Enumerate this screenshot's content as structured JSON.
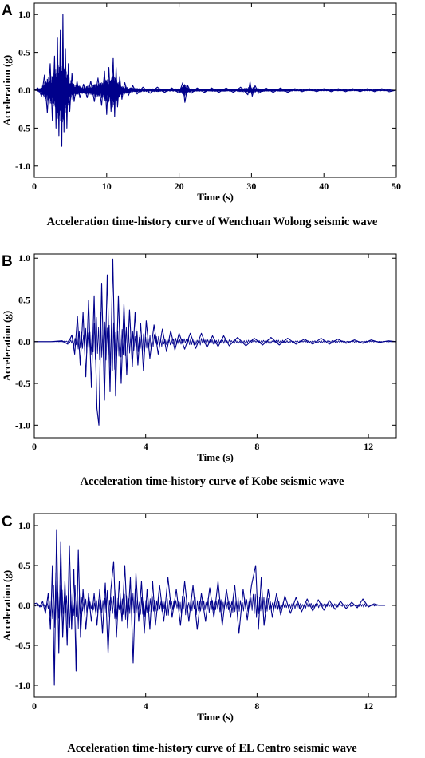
{
  "figure": {
    "series_color": "#00008B"
  },
  "chart_data": [
    {
      "type": "line",
      "panel_label": "A",
      "caption": "Acceleration time-history curve of Wenchuan Wolong seismic wave",
      "xlabel": "Time (s)",
      "ylabel": "Acceleration (g)",
      "xlim": [
        0,
        50
      ],
      "ylim": [
        -1.15,
        1.15
      ],
      "xticks": [
        0,
        10,
        20,
        30,
        40,
        50
      ],
      "yticks": [
        -1.0,
        -0.5,
        0.0,
        0.5,
        1.0
      ],
      "xtick_labels": [
        "0",
        "10",
        "20",
        "30",
        "40",
        "50"
      ],
      "ytick_labels": [
        "-1.0",
        "-0.5",
        "0.0",
        "0.5",
        "1.0"
      ],
      "grid": false,
      "series": [
        {
          "x": [
            0,
            0.5,
            1.0,
            1.4,
            1.8,
            2.2,
            2.5,
            2.8,
            3.0,
            3.2,
            3.4,
            3.6,
            3.8,
            3.95,
            4.1,
            4.3,
            4.5,
            4.7,
            4.9,
            5.2,
            5.5,
            5.9,
            6.3,
            6.8,
            7.3,
            7.8,
            8.3,
            8.8,
            9.3,
            9.7,
            10.0,
            10.3,
            10.6,
            10.9,
            11.1,
            11.3,
            11.5,
            11.8,
            12.1,
            12.5,
            13.0,
            13.6,
            14.2,
            15.0,
            16.0,
            17.0,
            18.0,
            19.0,
            20.0,
            20.5,
            20.8,
            21.2,
            21.7,
            22.5,
            23.5,
            24.5,
            25.5,
            26.5,
            27.5,
            28.5,
            29.5,
            29.8,
            30.1,
            30.5,
            31.0,
            32.0,
            33.0,
            34.0,
            35.0,
            36.0,
            37.0,
            38.0,
            39.0,
            40.0,
            41.0,
            42.0,
            43.0,
            44.0,
            45.0,
            46.0,
            47.0,
            48.0,
            49.0,
            50.0
          ],
          "y": [
            0.0,
            0.03,
            -0.08,
            0.2,
            -0.3,
            0.35,
            -0.4,
            0.45,
            -0.5,
            0.7,
            -0.6,
            0.8,
            -0.74,
            1.0,
            -0.55,
            0.55,
            -0.5,
            0.35,
            -0.28,
            0.22,
            -0.15,
            0.12,
            -0.1,
            0.08,
            -0.1,
            0.12,
            -0.15,
            0.16,
            -0.2,
            0.25,
            -0.32,
            0.3,
            -0.28,
            0.43,
            -0.35,
            0.3,
            -0.22,
            0.18,
            -0.12,
            0.1,
            -0.07,
            0.06,
            -0.05,
            0.04,
            -0.04,
            0.04,
            -0.03,
            0.03,
            -0.04,
            0.1,
            -0.16,
            0.06,
            -0.04,
            0.03,
            -0.03,
            0.03,
            -0.03,
            0.03,
            -0.03,
            0.04,
            -0.06,
            0.11,
            -0.08,
            0.06,
            -0.04,
            0.03,
            -0.03,
            0.03,
            -0.03,
            0.02,
            -0.02,
            0.02,
            -0.02,
            0.02,
            -0.02,
            0.02,
            -0.02,
            0.02,
            -0.02,
            0.02,
            -0.02,
            0.02,
            -0.02,
            0.0
          ]
        }
      ]
    },
    {
      "type": "line",
      "panel_label": "B",
      "caption": "Acceleration time-history curve of Kobe seismic wave",
      "xlabel": "Time (s)",
      "ylabel": "Acceleration (g)",
      "xlim": [
        0,
        13
      ],
      "ylim": [
        -1.15,
        1.05
      ],
      "xticks": [
        0,
        4,
        8,
        12
      ],
      "yticks": [
        -1.0,
        -0.5,
        0.0,
        0.5,
        1.0
      ],
      "xtick_labels": [
        "0",
        "4",
        "8",
        "12"
      ],
      "ytick_labels": [
        "-1.0",
        "-0.5",
        "0.0",
        "0.5",
        "1.0"
      ],
      "grid": false,
      "series": [
        {
          "x": [
            0,
            0.6,
            1.0,
            1.2,
            1.35,
            1.45,
            1.55,
            1.65,
            1.75,
            1.85,
            1.95,
            2.05,
            2.15,
            2.25,
            2.32,
            2.42,
            2.52,
            2.62,
            2.72,
            2.82,
            2.92,
            3.02,
            3.12,
            3.22,
            3.32,
            3.42,
            3.52,
            3.62,
            3.72,
            3.82,
            3.92,
            4.02,
            4.15,
            4.3,
            4.45,
            4.6,
            4.75,
            4.9,
            5.05,
            5.2,
            5.4,
            5.6,
            5.8,
            6.0,
            6.2,
            6.4,
            6.6,
            6.8,
            7.0,
            7.3,
            7.6,
            7.9,
            8.2,
            8.5,
            8.8,
            9.1,
            9.4,
            9.7,
            10.0,
            10.3,
            10.6,
            10.9,
            11.2,
            11.5,
            11.8,
            12.1,
            12.4,
            12.7,
            13.0
          ],
          "y": [
            0.0,
            0.0,
            0.01,
            -0.03,
            0.08,
            -0.15,
            0.3,
            -0.28,
            0.35,
            -0.42,
            0.5,
            -0.55,
            0.55,
            -0.8,
            -1.0,
            0.7,
            -0.7,
            0.8,
            -0.6,
            0.99,
            -0.65,
            0.55,
            -0.5,
            0.45,
            -0.4,
            0.38,
            -0.3,
            0.35,
            -0.28,
            0.22,
            -0.35,
            0.25,
            -0.2,
            0.2,
            -0.15,
            0.15,
            -0.12,
            0.13,
            -0.1,
            0.1,
            -0.09,
            0.1,
            -0.08,
            0.1,
            -0.07,
            0.07,
            -0.06,
            0.07,
            -0.05,
            0.05,
            -0.05,
            0.04,
            -0.04,
            0.05,
            -0.04,
            0.04,
            -0.03,
            0.03,
            -0.03,
            0.04,
            -0.03,
            0.03,
            -0.02,
            0.02,
            -0.02,
            0.02,
            -0.01,
            0.01,
            0.0
          ]
        }
      ]
    },
    {
      "type": "line",
      "panel_label": "C",
      "caption": "Acceleration time-history curve of EL Centro seismic wave",
      "xlabel": "Time (s)",
      "ylabel": "Acceleration (g)",
      "xlim": [
        0,
        13
      ],
      "ylim": [
        -1.15,
        1.15
      ],
      "xticks": [
        0,
        4,
        8,
        12
      ],
      "yticks": [
        -1.0,
        -0.5,
        0.0,
        0.5,
        1.0
      ],
      "xtick_labels": [
        "0",
        "4",
        "8",
        "12"
      ],
      "ytick_labels": [
        "-1.0",
        "-0.5",
        "0.0",
        "0.5",
        "1.0"
      ],
      "grid": false,
      "series": [
        {
          "x": [
            0,
            0.1,
            0.2,
            0.3,
            0.4,
            0.5,
            0.58,
            0.65,
            0.72,
            0.8,
            0.88,
            0.95,
            1.02,
            1.1,
            1.18,
            1.26,
            1.34,
            1.42,
            1.5,
            1.58,
            1.66,
            1.75,
            1.85,
            1.95,
            2.05,
            2.15,
            2.25,
            2.35,
            2.45,
            2.55,
            2.65,
            2.75,
            2.85,
            2.95,
            3.05,
            3.15,
            3.25,
            3.35,
            3.45,
            3.55,
            3.65,
            3.75,
            3.85,
            3.95,
            4.05,
            4.15,
            4.25,
            4.35,
            4.5,
            4.65,
            4.8,
            4.95,
            5.1,
            5.25,
            5.4,
            5.55,
            5.7,
            5.85,
            6.0,
            6.15,
            6.3,
            6.45,
            6.6,
            6.75,
            6.9,
            7.05,
            7.2,
            7.35,
            7.5,
            7.65,
            7.8,
            7.95,
            8.05,
            8.15,
            8.25,
            8.4,
            8.55,
            8.7,
            8.85,
            9.0,
            9.2,
            9.4,
            9.6,
            9.8,
            10.0,
            10.2,
            10.4,
            10.6,
            10.8,
            11.0,
            11.2,
            11.4,
            11.6,
            11.8,
            12.0,
            12.2,
            12.4,
            12.6
          ],
          "y": [
            0.02,
            0.03,
            -0.02,
            0.05,
            -0.1,
            0.15,
            -0.3,
            0.5,
            -1.0,
            0.95,
            -0.6,
            0.8,
            -0.4,
            0.3,
            -0.5,
            0.75,
            -0.3,
            0.45,
            -0.82,
            0.7,
            -0.4,
            0.2,
            -0.3,
            0.15,
            -0.2,
            0.15,
            -0.25,
            0.2,
            -0.35,
            0.28,
            -0.6,
            0.2,
            0.55,
            -0.4,
            0.3,
            -0.2,
            0.5,
            -0.28,
            0.35,
            -0.72,
            0.4,
            -0.2,
            0.3,
            -0.35,
            0.2,
            -0.3,
            0.3,
            -0.25,
            0.25,
            -0.2,
            0.35,
            -0.15,
            0.2,
            -0.25,
            0.3,
            -0.2,
            0.25,
            -0.3,
            0.15,
            -0.2,
            0.22,
            -0.15,
            0.3,
            -0.25,
            0.2,
            -0.15,
            0.25,
            -0.35,
            0.2,
            -0.18,
            0.25,
            0.5,
            -0.3,
            0.35,
            -0.25,
            0.2,
            -0.15,
            0.15,
            -0.12,
            0.12,
            -0.1,
            0.1,
            -0.08,
            0.08,
            -0.07,
            0.07,
            -0.06,
            0.06,
            -0.05,
            0.05,
            -0.04,
            0.04,
            -0.03,
            0.08,
            -0.02,
            0.02,
            0.0,
            0.0
          ]
        }
      ]
    }
  ]
}
